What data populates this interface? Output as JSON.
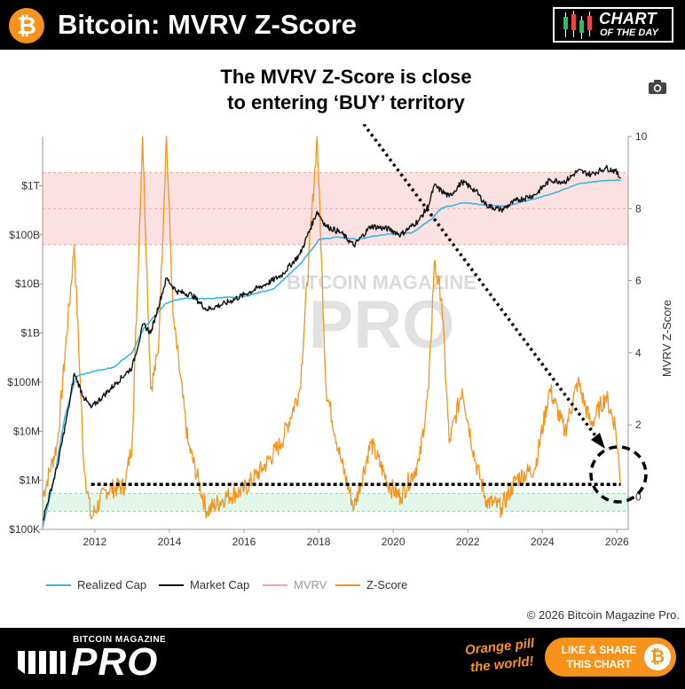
{
  "header": {
    "logo_icon": "bitcoin-icon",
    "title": "Bitcoin: MVRV Z-Score",
    "badge_line1": "CHART",
    "badge_line2": "OF THE DAY"
  },
  "annotation": {
    "line1": "The MVRV Z-Score is close",
    "line2": "to entering ‘BUY’ territory"
  },
  "toolbar": {
    "camera_icon": "camera-icon"
  },
  "watermark": {
    "top": "BITCOIN MAGAZINE",
    "main": "PRO"
  },
  "colors": {
    "realized": "#3BB4E0",
    "market": "#111111",
    "mvrv": "#F4A3A8",
    "zscore": "#F7931A",
    "red_zone": "#FBE1E2",
    "green_zone": "#E3F6EA"
  },
  "chart_data": {
    "type": "line",
    "title": "Bitcoin: MVRV Z-Score",
    "x_ticks": [
      "2012",
      "2014",
      "2016",
      "2018",
      "2020",
      "2022",
      "2024",
      "2026"
    ],
    "x_range": [
      2010.6,
      2026.3
    ],
    "y_left": {
      "scale": "log",
      "ticks": [
        "$100K",
        "$1M",
        "$10M",
        "$100M",
        "$1B",
        "$10B",
        "$100B",
        "$1T"
      ],
      "range": [
        100000,
        10000000000000
      ]
    },
    "y_right": {
      "label": "MVRV Z-Score",
      "ticks": [
        "0",
        "2",
        "4",
        "6",
        "8",
        "10"
      ],
      "range": [
        -0.9,
        10
      ]
    },
    "zones": {
      "sell_band": [
        7,
        9
      ],
      "buy_band": [
        -0.4,
        0.1
      ]
    },
    "reference_line": 0.35,
    "series": [
      {
        "name": "Realized Cap",
        "axis": "left",
        "points": [
          [
            2010.6,
            110000.0
          ],
          [
            2010.9,
            1000000.0
          ],
          [
            2011.2,
            20000000.0
          ],
          [
            2011.5,
            130000000.0
          ],
          [
            2011.9,
            160000000.0
          ],
          [
            2012.5,
            200000000.0
          ],
          [
            2013.0,
            400000000.0
          ],
          [
            2013.3,
            1200000000.0
          ],
          [
            2013.9,
            4000000000.0
          ],
          [
            2014.3,
            5000000000.0
          ],
          [
            2015.0,
            5000000000.0
          ],
          [
            2016.0,
            5500000000.0
          ],
          [
            2016.8,
            8000000000.0
          ],
          [
            2017.5,
            25000000000.0
          ],
          [
            2017.9,
            60000000000.0
          ],
          [
            2018.0,
            80000000000.0
          ],
          [
            2018.5,
            90000000000.0
          ],
          [
            2019.0,
            80000000000.0
          ],
          [
            2019.7,
            100000000000.0
          ],
          [
            2020.5,
            110000000000.0
          ],
          [
            2021.0,
            200000000000.0
          ],
          [
            2021.3,
            350000000000.0
          ],
          [
            2021.9,
            450000000000.0
          ],
          [
            2022.5,
            400000000000.0
          ],
          [
            2023.0,
            380000000000.0
          ],
          [
            2024.0,
            600000000000.0
          ],
          [
            2024.5,
            800000000000.0
          ],
          [
            2025.0,
            1100000000000.0
          ],
          [
            2025.8,
            1300000000000.0
          ],
          [
            2026.1,
            1300000000000.0
          ]
        ]
      },
      {
        "name": "Market Cap",
        "axis": "left",
        "points": [
          [
            2010.6,
            150000.0
          ],
          [
            2011.0,
            2000000.0
          ],
          [
            2011.3,
            30000000.0
          ],
          [
            2011.45,
            150000000.0
          ],
          [
            2011.7,
            50000000.0
          ],
          [
            2011.9,
            30000000.0
          ],
          [
            2012.2,
            50000000.0
          ],
          [
            2012.6,
            100000000.0
          ],
          [
            2013.0,
            200000000.0
          ],
          [
            2013.3,
            1500000000.0
          ],
          [
            2013.5,
            1000000000.0
          ],
          [
            2013.92,
            13000000000.0
          ],
          [
            2014.2,
            7000000000.0
          ],
          [
            2014.6,
            6000000000.0
          ],
          [
            2015.0,
            3000000000.0
          ],
          [
            2015.5,
            4000000000.0
          ],
          [
            2016.0,
            6000000000.0
          ],
          [
            2016.6,
            10000000000.0
          ],
          [
            2017.0,
            15000000000.0
          ],
          [
            2017.5,
            40000000000.0
          ],
          [
            2017.96,
            300000000000.0
          ],
          [
            2018.2,
            150000000000.0
          ],
          [
            2018.6,
            110000000000.0
          ],
          [
            2018.95,
            60000000000.0
          ],
          [
            2019.4,
            150000000000.0
          ],
          [
            2019.9,
            130000000000.0
          ],
          [
            2020.2,
            100000000000.0
          ],
          [
            2020.7,
            200000000000.0
          ],
          [
            2020.95,
            400000000000.0
          ],
          [
            2021.1,
            1000000000000.0
          ],
          [
            2021.5,
            600000000000.0
          ],
          [
            2021.85,
            1200000000000.0
          ],
          [
            2022.2,
            800000000000.0
          ],
          [
            2022.5,
            400000000000.0
          ],
          [
            2022.9,
            320000000000.0
          ],
          [
            2023.3,
            500000000000.0
          ],
          [
            2023.8,
            650000000000.0
          ],
          [
            2024.2,
            1300000000000.0
          ],
          [
            2024.6,
            1200000000000.0
          ],
          [
            2024.95,
            2000000000000.0
          ],
          [
            2025.3,
            1700000000000.0
          ],
          [
            2025.7,
            2300000000000.0
          ],
          [
            2025.95,
            2000000000000.0
          ],
          [
            2026.1,
            1400000000000.0
          ]
        ]
      },
      {
        "name": "MVRV",
        "axis": "right",
        "points": []
      },
      {
        "name": "Z-Score",
        "axis": "right",
        "points": [
          [
            2010.6,
            0.0
          ],
          [
            2011.0,
            1.5
          ],
          [
            2011.45,
            7.0
          ],
          [
            2011.7,
            1.0
          ],
          [
            2011.9,
            -0.6
          ],
          [
            2012.3,
            0.2
          ],
          [
            2012.8,
            0.3
          ],
          [
            2013.0,
            1.5
          ],
          [
            2013.28,
            10.0
          ],
          [
            2013.5,
            3.0
          ],
          [
            2013.7,
            4.0
          ],
          [
            2013.92,
            10.0
          ],
          [
            2014.1,
            5.0
          ],
          [
            2014.5,
            1.5
          ],
          [
            2015.0,
            -0.4
          ],
          [
            2015.5,
            0.0
          ],
          [
            2016.0,
            0.2
          ],
          [
            2016.5,
            0.8
          ],
          [
            2017.0,
            1.5
          ],
          [
            2017.5,
            3.0
          ],
          [
            2017.96,
            10.0
          ],
          [
            2018.2,
            3.0
          ],
          [
            2018.6,
            1.0
          ],
          [
            2018.95,
            -0.3
          ],
          [
            2019.4,
            1.5
          ],
          [
            2019.9,
            0.3
          ],
          [
            2020.2,
            0.0
          ],
          [
            2020.7,
            1.0
          ],
          [
            2020.95,
            3.0
          ],
          [
            2021.1,
            6.5
          ],
          [
            2021.3,
            5.5
          ],
          [
            2021.5,
            1.5
          ],
          [
            2021.85,
            3.0
          ],
          [
            2022.2,
            1.0
          ],
          [
            2022.5,
            -0.1
          ],
          [
            2022.9,
            -0.3
          ],
          [
            2023.3,
            0.5
          ],
          [
            2023.8,
            0.8
          ],
          [
            2024.2,
            3.0
          ],
          [
            2024.6,
            1.8
          ],
          [
            2024.95,
            3.2
          ],
          [
            2025.3,
            2.0
          ],
          [
            2025.7,
            2.8
          ],
          [
            2025.95,
            2.0
          ],
          [
            2026.1,
            0.4
          ]
        ]
      }
    ]
  },
  "legend": [
    {
      "label": "Realized Cap",
      "color": "#3BB4E0"
    },
    {
      "label": "Market Cap",
      "color": "#111111"
    },
    {
      "label": "MVRV",
      "color": "#F4A3A8"
    },
    {
      "label": "Z-Score",
      "color": "#F7931A"
    }
  ],
  "copyright": "© 2026 Bitcoin Magazine Pro.",
  "footer": {
    "brand_small": "BITCOIN MAGAZINE",
    "brand_big": "PRO",
    "tagline1": "Orange pill",
    "tagline2": "the world!",
    "share_line1": "LIKE & SHARE",
    "share_line2": "THIS CHART",
    "share_icon": "bitcoin-icon"
  }
}
